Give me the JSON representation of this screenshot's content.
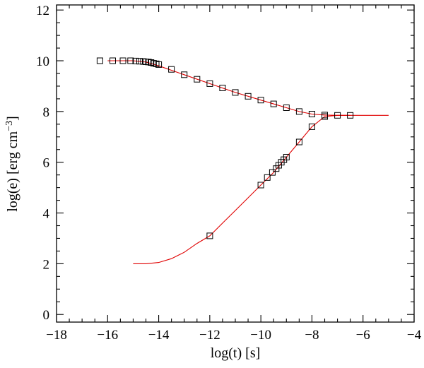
{
  "chart_data": {
    "type": "scatter",
    "xlabel": "log(t)  [s]",
    "ylabel_main": "log(e)  [erg cm",
    "ylabel_sup": "−3",
    "ylabel_close": "]",
    "xlim": [
      -18,
      -4
    ],
    "ylim": [
      -0.3,
      12.2
    ],
    "x_ticks": [
      -18,
      -16,
      -14,
      -12,
      -10,
      -8,
      -6,
      -4
    ],
    "x_tick_labels": [
      "−18",
      "−16",
      "−14",
      "−12",
      "−10",
      "−8",
      "−6",
      "−4"
    ],
    "x_minor_step": 0.5,
    "y_ticks": [
      0,
      2,
      4,
      6,
      8,
      10,
      12
    ],
    "y_tick_labels": [
      "0",
      "2",
      "4",
      "6",
      "8",
      "10",
      "12"
    ],
    "y_minor_step": 0.5,
    "grid": false,
    "series": [
      {
        "style": "line",
        "color": "#e00000",
        "points": [
          [
            -16.0,
            10.0
          ],
          [
            -15.0,
            10.0
          ],
          [
            -14.5,
            9.95
          ],
          [
            -14.0,
            9.8
          ],
          [
            -13.0,
            9.45
          ],
          [
            -12.0,
            9.1
          ],
          [
            -11.0,
            8.75
          ],
          [
            -10.0,
            8.45
          ],
          [
            -9.0,
            8.15
          ],
          [
            -8.5,
            8.0
          ],
          [
            -8.0,
            7.9
          ],
          [
            -7.5,
            7.86
          ],
          [
            -7.0,
            7.85
          ],
          [
            -6.0,
            7.85
          ],
          [
            -5.0,
            7.85
          ]
        ]
      },
      {
        "style": "line",
        "color": "#e00000",
        "points": [
          [
            -15.0,
            2.0
          ],
          [
            -14.5,
            2.0
          ],
          [
            -14.0,
            2.05
          ],
          [
            -13.5,
            2.2
          ],
          [
            -13.0,
            2.45
          ],
          [
            -12.5,
            2.8
          ],
          [
            -12.0,
            3.1
          ],
          [
            -11.5,
            3.6
          ],
          [
            -11.0,
            4.1
          ],
          [
            -10.5,
            4.6
          ],
          [
            -10.0,
            5.1
          ],
          [
            -9.5,
            5.6
          ],
          [
            -9.0,
            6.2
          ],
          [
            -8.5,
            6.8
          ],
          [
            -8.0,
            7.4
          ],
          [
            -7.5,
            7.8
          ],
          [
            -7.0,
            7.85
          ],
          [
            -6.5,
            7.85
          ]
        ]
      },
      {
        "style": "markers",
        "marker": "square",
        "color": "#000000",
        "points": [
          [
            -16.3,
            10.0
          ],
          [
            -15.8,
            10.0
          ],
          [
            -15.4,
            10.0
          ],
          [
            -15.1,
            10.0
          ],
          [
            -14.9,
            9.99
          ],
          [
            -14.75,
            9.98
          ],
          [
            -14.6,
            9.97
          ],
          [
            -14.5,
            9.96
          ],
          [
            -14.4,
            9.95
          ],
          [
            -14.3,
            9.93
          ],
          [
            -14.2,
            9.9
          ],
          [
            -14.1,
            9.88
          ],
          [
            -14.0,
            9.85
          ],
          [
            -13.5,
            9.66
          ],
          [
            -13.0,
            9.45
          ],
          [
            -12.5,
            9.27
          ],
          [
            -12.0,
            9.1
          ],
          [
            -11.5,
            8.93
          ],
          [
            -11.0,
            8.75
          ],
          [
            -10.5,
            8.6
          ],
          [
            -10.0,
            8.45
          ],
          [
            -9.5,
            8.3
          ],
          [
            -9.0,
            8.15
          ],
          [
            -8.5,
            8.0
          ],
          [
            -8.0,
            7.9
          ],
          [
            -7.5,
            7.86
          ],
          [
            -7.0,
            7.85
          ],
          [
            -6.5,
            7.85
          ],
          [
            -12.0,
            3.1
          ],
          [
            -10.0,
            5.1
          ],
          [
            -9.75,
            5.4
          ],
          [
            -9.55,
            5.6
          ],
          [
            -9.4,
            5.75
          ],
          [
            -9.3,
            5.88
          ],
          [
            -9.2,
            6.0
          ],
          [
            -9.1,
            6.1
          ],
          [
            -9.0,
            6.2
          ],
          [
            -8.5,
            6.8
          ],
          [
            -8.0,
            7.4
          ],
          [
            -7.5,
            7.8
          ]
        ]
      }
    ]
  }
}
